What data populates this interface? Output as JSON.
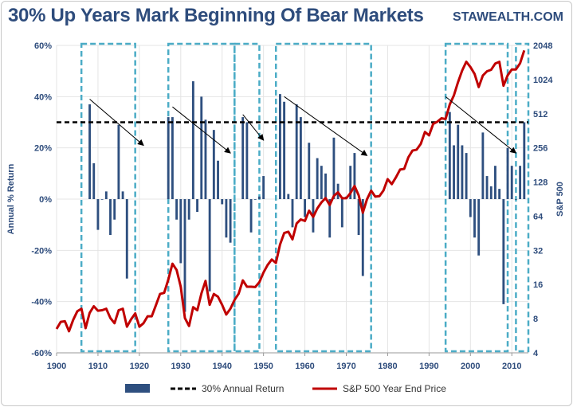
{
  "header": {
    "title": "30% Up Years Mark Beginning Of Bear Markets",
    "brand": "STAWEALTH.COM"
  },
  "chart_data": {
    "type": "bar",
    "xlim": [
      1900,
      2014
    ],
    "x_ticks": [
      1900,
      1910,
      1920,
      1930,
      1940,
      1950,
      1960,
      1970,
      1980,
      1990,
      2000,
      2010
    ],
    "ylabel": "Annual % Return",
    "ylim": [
      -60,
      60
    ],
    "y_ticks": [
      -60,
      -40,
      -20,
      0,
      20,
      40,
      60
    ],
    "y_tick_labels": [
      "-60%",
      "-40%",
      "-20%",
      "0%",
      "20%",
      "40%",
      "60%"
    ],
    "y2label": "S&P 500",
    "y2_scale": "log2",
    "y2lim": [
      4,
      2048
    ],
    "y2_ticks": [
      4,
      8,
      16,
      32,
      64,
      128,
      256,
      512,
      1024,
      2048
    ],
    "colors": {
      "bars": "#2e4f7f",
      "price": "#c00000",
      "reference": "#000000",
      "boxes": "#4bacc6"
    },
    "legend": {
      "placement": "bottom",
      "entries": [
        "",
        "30% Annual Return",
        "S&P 500 Year End Price"
      ]
    },
    "reference_line": {
      "y": 30
    },
    "series": [
      {
        "type": "bar",
        "points": [
          [
            1908,
            37
          ],
          [
            1909,
            14
          ],
          [
            1910,
            -12
          ],
          [
            1911,
            0
          ],
          [
            1912,
            3
          ],
          [
            1913,
            -14
          ],
          [
            1914,
            -8
          ],
          [
            1915,
            29
          ],
          [
            1916,
            3
          ],
          [
            1917,
            -31
          ],
          [
            1927,
            32
          ],
          [
            1928,
            32
          ],
          [
            1929,
            -8
          ],
          [
            1930,
            -25
          ],
          [
            1931,
            -44
          ],
          [
            1932,
            -8
          ],
          [
            1933,
            46
          ],
          [
            1934,
            -5
          ],
          [
            1935,
            40
          ],
          [
            1936,
            31
          ],
          [
            1937,
            -36
          ],
          [
            1938,
            27
          ],
          [
            1939,
            15
          ],
          [
            1940,
            -2
          ],
          [
            1941,
            -15
          ],
          [
            1942,
            -17
          ],
          [
            1945,
            32
          ],
          [
            1946,
            30
          ],
          [
            1947,
            -13
          ],
          [
            1948,
            0
          ],
          [
            1949,
            1
          ],
          [
            1950,
            9
          ],
          [
            1954,
            41
          ],
          [
            1955,
            38
          ],
          [
            1956,
            2
          ],
          [
            1957,
            -11
          ],
          [
            1958,
            37
          ],
          [
            1959,
            32
          ],
          [
            1960,
            -7
          ],
          [
            1961,
            22
          ],
          [
            1962,
            -13
          ],
          [
            1963,
            16
          ],
          [
            1964,
            13
          ],
          [
            1965,
            10
          ],
          [
            1966,
            -15
          ],
          [
            1967,
            24
          ],
          [
            1968,
            6
          ],
          [
            1969,
            -11
          ],
          [
            1970,
            1
          ],
          [
            1971,
            13
          ],
          [
            1972,
            18
          ],
          [
            1973,
            -14
          ],
          [
            1974,
            -30
          ],
          [
            1995,
            34
          ],
          [
            1996,
            21
          ],
          [
            1997,
            29
          ],
          [
            1998,
            21
          ],
          [
            1999,
            18
          ],
          [
            2000,
            -7
          ],
          [
            2001,
            -15
          ],
          [
            2002,
            -22
          ],
          [
            2003,
            26
          ],
          [
            2004,
            9
          ],
          [
            2005,
            5
          ],
          [
            2006,
            13
          ],
          [
            2007,
            4
          ],
          [
            2008,
            -41
          ],
          [
            2009,
            20
          ],
          [
            2010,
            13
          ],
          [
            2011,
            0
          ],
          [
            2012,
            13
          ],
          [
            2013,
            30
          ]
        ]
      },
      {
        "type": "line",
        "name": "S&P 500 Year End Price",
        "axis": "right",
        "points": [
          [
            1900,
            6.5
          ],
          [
            1901,
            7.5
          ],
          [
            1902,
            7.6
          ],
          [
            1903,
            6.2
          ],
          [
            1904,
            7.8
          ],
          [
            1905,
            9.3
          ],
          [
            1906,
            9.8
          ],
          [
            1907,
            6.6
          ],
          [
            1908,
            9.0
          ],
          [
            1909,
            10.3
          ],
          [
            1910,
            9.4
          ],
          [
            1911,
            9.5
          ],
          [
            1912,
            9.8
          ],
          [
            1913,
            8.1
          ],
          [
            1914,
            7.3
          ],
          [
            1915,
            9.5
          ],
          [
            1916,
            9.8
          ],
          [
            1917,
            6.8
          ],
          [
            1918,
            7.9
          ],
          [
            1919,
            8.9
          ],
          [
            1920,
            6.8
          ],
          [
            1921,
            7.3
          ],
          [
            1922,
            8.4
          ],
          [
            1923,
            8.4
          ],
          [
            1924,
            10.5
          ],
          [
            1925,
            13.2
          ],
          [
            1926,
            13.5
          ],
          [
            1927,
            17.7
          ],
          [
            1928,
            24.4
          ],
          [
            1929,
            21.5
          ],
          [
            1930,
            15.3
          ],
          [
            1931,
            8.1
          ],
          [
            1932,
            6.9
          ],
          [
            1933,
            10.1
          ],
          [
            1934,
            9.5
          ],
          [
            1935,
            13.4
          ],
          [
            1936,
            17.2
          ],
          [
            1937,
            10.6
          ],
          [
            1938,
            13.2
          ],
          [
            1939,
            12.5
          ],
          [
            1940,
            10.6
          ],
          [
            1941,
            8.7
          ],
          [
            1942,
            9.8
          ],
          [
            1943,
            11.7
          ],
          [
            1944,
            13.3
          ],
          [
            1945,
            17.4
          ],
          [
            1946,
            15.3
          ],
          [
            1947,
            15.3
          ],
          [
            1948,
            15.2
          ],
          [
            1949,
            16.8
          ],
          [
            1950,
            20.4
          ],
          [
            1951,
            23.8
          ],
          [
            1952,
            26.6
          ],
          [
            1953,
            24.8
          ],
          [
            1954,
            36.0
          ],
          [
            1955,
            45.5
          ],
          [
            1956,
            46.7
          ],
          [
            1957,
            39.99
          ],
          [
            1958,
            55.2
          ],
          [
            1959,
            59.9
          ],
          [
            1960,
            58.1
          ],
          [
            1961,
            71.6
          ],
          [
            1962,
            63.1
          ],
          [
            1963,
            75.0
          ],
          [
            1964,
            84.8
          ],
          [
            1965,
            92.4
          ],
          [
            1966,
            80.3
          ],
          [
            1967,
            96.5
          ],
          [
            1968,
            103.9
          ],
          [
            1969,
            92.1
          ],
          [
            1970,
            92.2
          ],
          [
            1971,
            102.1
          ],
          [
            1972,
            118.1
          ],
          [
            1973,
            97.6
          ],
          [
            1974,
            68.6
          ],
          [
            1975,
            90.2
          ],
          [
            1976,
            107.5
          ],
          [
            1977,
            95.1
          ],
          [
            1978,
            96.1
          ],
          [
            1979,
            107.9
          ],
          [
            1980,
            135.8
          ],
          [
            1981,
            122.6
          ],
          [
            1982,
            140.6
          ],
          [
            1983,
            164.9
          ],
          [
            1984,
            167.2
          ],
          [
            1985,
            211.3
          ],
          [
            1986,
            242.2
          ],
          [
            1987,
            247.1
          ],
          [
            1988,
            277.7
          ],
          [
            1989,
            353.4
          ],
          [
            1990,
            330.2
          ],
          [
            1991,
            417.1
          ],
          [
            1992,
            435.7
          ],
          [
            1993,
            466.5
          ],
          [
            1994,
            459.3
          ],
          [
            1995,
            615.9
          ],
          [
            1996,
            740.7
          ],
          [
            1997,
            970.4
          ],
          [
            1998,
            1229.2
          ],
          [
            1999,
            1469.3
          ],
          [
            2000,
            1320.3
          ],
          [
            2001,
            1148.1
          ],
          [
            2002,
            879.8
          ],
          [
            2003,
            1111.9
          ],
          [
            2004,
            1211.9
          ],
          [
            2005,
            1248.3
          ],
          [
            2006,
            1418.3
          ],
          [
            2007,
            1468.4
          ],
          [
            2008,
            903.3
          ],
          [
            2009,
            1115.1
          ],
          [
            2010,
            1257.6
          ],
          [
            2011,
            1257.6
          ],
          [
            2012,
            1426.2
          ],
          [
            2013,
            1848.4
          ]
        ]
      }
    ],
    "annotations": {
      "highlight_ranges": [
        [
          1906,
          1919
        ],
        [
          1927,
          1943
        ],
        [
          1943,
          1949
        ],
        [
          1953,
          1976
        ],
        [
          1994,
          2009
        ],
        [
          2011,
          2014
        ]
      ],
      "trend_arrows": [
        [
          [
            1908,
            39
          ],
          [
            1921,
            21
          ]
        ],
        [
          [
            1928,
            36
          ],
          [
            1942,
            18
          ]
        ],
        [
          [
            1945,
            33
          ],
          [
            1950,
            23
          ]
        ],
        [
          [
            1955,
            40
          ],
          [
            1975,
            17
          ]
        ],
        [
          [
            1994,
            40
          ],
          [
            2011,
            18
          ]
        ]
      ]
    }
  }
}
